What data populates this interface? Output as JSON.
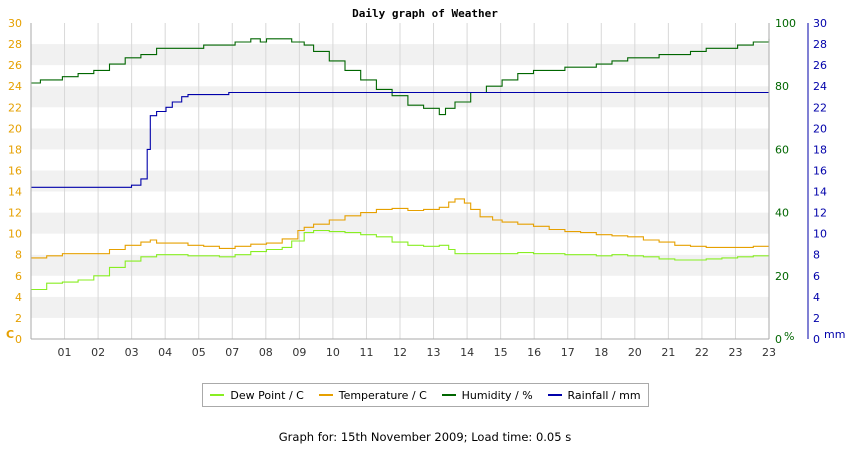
{
  "chart_data": {
    "type": "line",
    "title": "Daily graph of Weather",
    "x_tick_labels": [
      "01",
      "02",
      "03",
      "04",
      "05",
      "07",
      "08",
      "09",
      "10",
      "11",
      "12",
      "13",
      "14",
      "15",
      "16",
      "17",
      "18",
      "20",
      "21",
      "22",
      "23",
      "23"
    ],
    "axes": {
      "temp": {
        "unit_label": "C",
        "min": 0,
        "max": 30,
        "step": 2,
        "color": "#e6a000"
      },
      "humidity": {
        "unit_label": "%",
        "min": 0,
        "max": 100,
        "step": 20,
        "color": "#006600"
      },
      "rain": {
        "unit_label": "mm",
        "min": 0,
        "max": 30,
        "step": 2,
        "color": "#0000aa"
      }
    },
    "grid": true,
    "legend_position": "bottom",
    "series": [
      {
        "name": "Dew Point / C",
        "color": "#88ee22",
        "axis": "temp",
        "points": [
          [
            0,
            4.7
          ],
          [
            0.5,
            5.3
          ],
          [
            1,
            5.4
          ],
          [
            1.5,
            5.6
          ],
          [
            2,
            6.0
          ],
          [
            2.5,
            6.8
          ],
          [
            3,
            7.4
          ],
          [
            3.5,
            7.8
          ],
          [
            4,
            8.0
          ],
          [
            5,
            7.9
          ],
          [
            6,
            7.8
          ],
          [
            6.5,
            8.0
          ],
          [
            7,
            8.3
          ],
          [
            7.5,
            8.5
          ],
          [
            8,
            8.7
          ],
          [
            8.3,
            9.3
          ],
          [
            8.7,
            10.1
          ],
          [
            9,
            10.3
          ],
          [
            9.5,
            10.2
          ],
          [
            10,
            10.1
          ],
          [
            10.5,
            9.9
          ],
          [
            11,
            9.7
          ],
          [
            11.5,
            9.2
          ],
          [
            12,
            8.9
          ],
          [
            12.5,
            8.8
          ],
          [
            13,
            8.9
          ],
          [
            13.3,
            8.5
          ],
          [
            13.5,
            8.1
          ],
          [
            14,
            8.1
          ],
          [
            14.5,
            8.1
          ],
          [
            15,
            8.1
          ],
          [
            15.5,
            8.2
          ],
          [
            16,
            8.1
          ],
          [
            17,
            8.0
          ],
          [
            18,
            7.9
          ],
          [
            18.5,
            8.0
          ],
          [
            19,
            7.9
          ],
          [
            19.5,
            7.8
          ],
          [
            20,
            7.6
          ],
          [
            20.5,
            7.5
          ],
          [
            21,
            7.5
          ],
          [
            21.5,
            7.6
          ],
          [
            22,
            7.7
          ],
          [
            22.5,
            7.8
          ],
          [
            23,
            7.9
          ],
          [
            23.5,
            8.0
          ]
        ]
      },
      {
        "name": "Temperature / C",
        "color": "#e6a000",
        "axis": "temp",
        "points": [
          [
            0,
            7.7
          ],
          [
            0.5,
            7.9
          ],
          [
            1,
            8.1
          ],
          [
            1.5,
            8.1
          ],
          [
            2,
            8.1
          ],
          [
            2.5,
            8.5
          ],
          [
            3,
            8.9
          ],
          [
            3.5,
            9.2
          ],
          [
            3.8,
            9.4
          ],
          [
            4,
            9.1
          ],
          [
            5,
            8.9
          ],
          [
            5.5,
            8.8
          ],
          [
            6,
            8.6
          ],
          [
            6.5,
            8.8
          ],
          [
            7,
            9.0
          ],
          [
            7.5,
            9.1
          ],
          [
            8,
            9.5
          ],
          [
            8.5,
            10.3
          ],
          [
            8.7,
            10.6
          ],
          [
            9,
            10.9
          ],
          [
            9.5,
            11.3
          ],
          [
            10,
            11.7
          ],
          [
            10.5,
            12.0
          ],
          [
            11,
            12.3
          ],
          [
            11.5,
            12.4
          ],
          [
            12,
            12.2
          ],
          [
            12.5,
            12.3
          ],
          [
            13,
            12.5
          ],
          [
            13.3,
            13.0
          ],
          [
            13.5,
            13.3
          ],
          [
            13.8,
            12.9
          ],
          [
            14,
            12.3
          ],
          [
            14.3,
            11.6
          ],
          [
            14.7,
            11.3
          ],
          [
            15,
            11.1
          ],
          [
            15.5,
            10.9
          ],
          [
            16,
            10.7
          ],
          [
            16.5,
            10.4
          ],
          [
            17,
            10.2
          ],
          [
            17.5,
            10.1
          ],
          [
            18,
            9.9
          ],
          [
            18.5,
            9.8
          ],
          [
            19,
            9.7
          ],
          [
            19.5,
            9.4
          ],
          [
            20,
            9.2
          ],
          [
            20.5,
            8.9
          ],
          [
            21,
            8.8
          ],
          [
            21.5,
            8.7
          ],
          [
            22,
            8.7
          ],
          [
            22.5,
            8.7
          ],
          [
            23,
            8.8
          ],
          [
            23.5,
            8.8
          ]
        ]
      },
      {
        "name": "Humidity / %",
        "color": "#006600",
        "axis": "humidity",
        "points": [
          [
            0,
            81
          ],
          [
            0.3,
            82
          ],
          [
            1,
            83
          ],
          [
            1.5,
            84
          ],
          [
            2,
            85
          ],
          [
            2.5,
            87
          ],
          [
            3,
            89
          ],
          [
            3.5,
            90
          ],
          [
            4,
            92
          ],
          [
            4.5,
            92
          ],
          [
            5,
            92
          ],
          [
            5.5,
            93
          ],
          [
            6,
            93
          ],
          [
            6.5,
            94
          ],
          [
            7,
            95
          ],
          [
            7.3,
            94
          ],
          [
            7.5,
            95
          ],
          [
            8,
            95
          ],
          [
            8.3,
            94
          ],
          [
            8.7,
            93
          ],
          [
            9,
            91
          ],
          [
            9.5,
            88
          ],
          [
            10,
            85
          ],
          [
            10.5,
            82
          ],
          [
            11,
            79
          ],
          [
            11.5,
            77
          ],
          [
            12,
            74
          ],
          [
            12.5,
            73
          ],
          [
            13,
            71
          ],
          [
            13.2,
            73
          ],
          [
            13.5,
            75
          ],
          [
            14,
            78
          ],
          [
            14.5,
            80
          ],
          [
            15,
            82
          ],
          [
            15.5,
            84
          ],
          [
            16,
            85
          ],
          [
            16.5,
            85
          ],
          [
            17,
            86
          ],
          [
            17.5,
            86
          ],
          [
            18,
            87
          ],
          [
            18.5,
            88
          ],
          [
            19,
            89
          ],
          [
            19.5,
            89
          ],
          [
            20,
            90
          ],
          [
            20.5,
            90
          ],
          [
            21,
            91
          ],
          [
            21.5,
            92
          ],
          [
            22,
            92
          ],
          [
            22.5,
            93
          ],
          [
            23,
            94
          ],
          [
            23.5,
            95
          ]
        ]
      },
      {
        "name": "Rainfall / mm",
        "color": "#0000aa",
        "axis": "rain",
        "points": [
          [
            0,
            14.4
          ],
          [
            2.5,
            14.4
          ],
          [
            3.2,
            14.6
          ],
          [
            3.5,
            15.2
          ],
          [
            3.7,
            18.0
          ],
          [
            3.8,
            21.2
          ],
          [
            4,
            21.6
          ],
          [
            4.3,
            22.0
          ],
          [
            4.5,
            22.5
          ],
          [
            4.8,
            23.0
          ],
          [
            5,
            23.2
          ],
          [
            6,
            23.2
          ],
          [
            6.3,
            23.4
          ],
          [
            7,
            23.4
          ],
          [
            23.5,
            23.4
          ]
        ]
      }
    ]
  },
  "legend": {
    "items": [
      "Dew Point / C",
      "Temperature / C",
      "Humidity / %",
      "Rainfall / mm"
    ]
  },
  "footer": {
    "text": "Graph for: 15th November 2009; Load time: 0.05 s"
  }
}
